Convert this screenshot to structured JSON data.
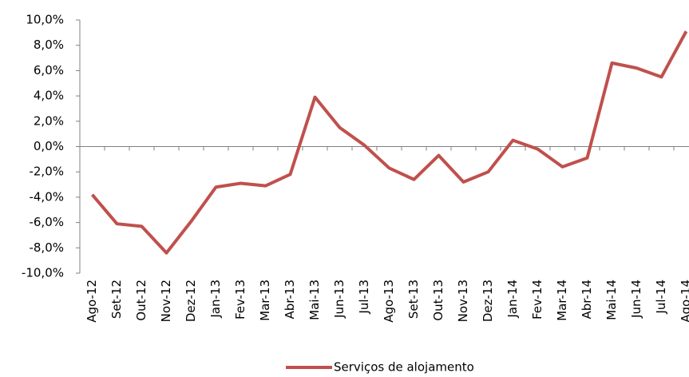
{
  "chart_data": {
    "type": "line",
    "categories": [
      "Ago-12",
      "Set-12",
      "Out-12",
      "Nov-12",
      "Dez-12",
      "Jan-13",
      "Fev-13",
      "Mar-13",
      "Abr-13",
      "Mai-13",
      "Jun-13",
      "Jul-13",
      "Ago-13",
      "Set-13",
      "Out-13",
      "Nov-13",
      "Dez-13",
      "Jan-14",
      "Fev-14",
      "Mar-14",
      "Abr-14",
      "Mai-14",
      "Jun-14",
      "Jul-14",
      "Ago-14"
    ],
    "series": [
      {
        "name": "Serviços de alojamento",
        "color": "#c0504d",
        "values": [
          -3.8,
          -6.1,
          -6.3,
          -8.4,
          -5.9,
          -3.2,
          -2.9,
          -3.1,
          -2.2,
          3.9,
          1.5,
          0.1,
          -1.7,
          -2.6,
          -0.7,
          -2.8,
          -2.0,
          0.5,
          -0.2,
          -1.6,
          -0.9,
          6.6,
          6.2,
          5.5,
          9.1
        ]
      }
    ],
    "ylim": [
      -10,
      10
    ],
    "yticks": [
      {
        "value": -10,
        "label": "-10,0%"
      },
      {
        "value": -8,
        "label": "-8,0%"
      },
      {
        "value": -6,
        "label": "-6,0%"
      },
      {
        "value": -4,
        "label": "-4,0%"
      },
      {
        "value": -2,
        "label": "-2,0%"
      },
      {
        "value": 0,
        "label": "0,0%"
      },
      {
        "value": 2,
        "label": "2,0%"
      },
      {
        "value": 4,
        "label": "4,0%"
      },
      {
        "value": 6,
        "label": "6,0%"
      },
      {
        "value": 8,
        "label": "8,0%"
      },
      {
        "value": 10,
        "label": "10,0%"
      }
    ],
    "legend": "bottom"
  }
}
